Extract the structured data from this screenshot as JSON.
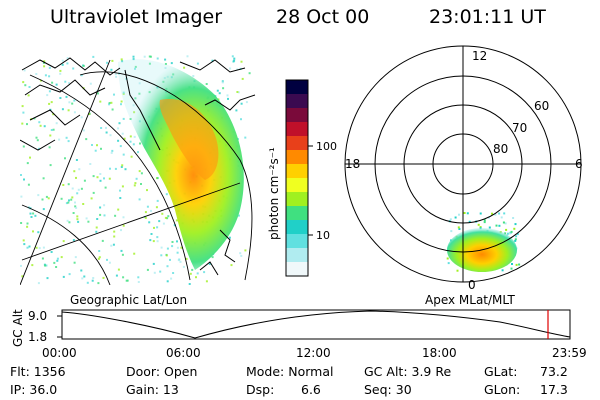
{
  "header": {
    "title": "Ultraviolet Imager",
    "date": "28 Oct 00",
    "time": "23:01:11 UT"
  },
  "colorbar": {
    "label": "photon cm⁻²s⁻¹",
    "ticks": [
      "100",
      "10"
    ],
    "colors": [
      "#000040",
      "#3a0a50",
      "#7a0a3a",
      "#c0102a",
      "#e8401a",
      "#ff8a00",
      "#ffd000",
      "#f0ff20",
      "#a0f020",
      "#40e080",
      "#20d0c8",
      "#60e0e0",
      "#b0ecf0",
      "#f0f8fa"
    ]
  },
  "geo_map": {
    "caption": "Geographic Lat/Lon"
  },
  "polar_plot": {
    "caption": "Apex MLat/MLT",
    "mlt_labels": {
      "top": "12",
      "left": "18",
      "right": "6",
      "bottom": "0"
    },
    "lat_labels": [
      "60",
      "70",
      "80"
    ]
  },
  "altitude_plot": {
    "axis_title": "GC Alt",
    "ymax": "9.0",
    "ymin": "1.8",
    "x_ticks": [
      "00:00",
      "06:00",
      "12:00",
      "18:00",
      "23:59"
    ]
  },
  "info": {
    "flt": "Flt: 1356",
    "ip": "IP: 36.0",
    "door": "Door: Open",
    "gain": "Gain: 13",
    "mode": "Mode: Normal",
    "dsp_label": "Dsp:",
    "dsp_value": "6.6",
    "gc_alt": "GC Alt: 3.9 Re",
    "seq": "Seq: 30",
    "glat": "GLat:",
    "glat_value": "73.2",
    "glon": "GLon:",
    "glon_value": "17.3"
  }
}
